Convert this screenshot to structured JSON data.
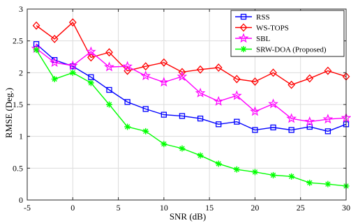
{
  "chart_data": {
    "type": "line",
    "title": "",
    "xlabel": "SNR (dB)",
    "ylabel": "RMSE (Deg.)",
    "xlim": [
      -5,
      30
    ],
    "ylim": [
      0,
      3
    ],
    "xticks": [
      -5,
      0,
      5,
      10,
      15,
      20,
      25,
      30
    ],
    "yticks": [
      0,
      0.5,
      1,
      1.5,
      2,
      2.5,
      3
    ],
    "xtick_labels": [
      "-5",
      "0",
      "5",
      "10",
      "15",
      "20",
      "25",
      "30"
    ],
    "ytick_labels": [
      "0",
      "0.5",
      "1",
      "1.5",
      "2",
      "2.5",
      "3"
    ],
    "grid": true,
    "legend_position": "top-right",
    "x": [
      -4,
      -2,
      0,
      2,
      4,
      6,
      8,
      10,
      12,
      14,
      16,
      18,
      20,
      22,
      24,
      26,
      28,
      30
    ],
    "series": [
      {
        "name": "RSS",
        "color": "#0000ff",
        "marker": "square",
        "values": [
          2.45,
          2.2,
          2.1,
          1.93,
          1.73,
          1.54,
          1.43,
          1.34,
          1.32,
          1.28,
          1.19,
          1.23,
          1.1,
          1.14,
          1.1,
          1.15,
          1.08,
          1.19
        ]
      },
      {
        "name": "WS-TOPS",
        "color": "#ff0000",
        "marker": "diamond",
        "values": [
          2.74,
          2.53,
          2.79,
          2.24,
          2.32,
          2.03,
          2.1,
          2.16,
          2.01,
          2.05,
          2.08,
          1.9,
          1.86,
          2.0,
          1.81,
          1.91,
          2.03,
          1.94
        ]
      },
      {
        "name": "SBL",
        "color": "#ff00ff",
        "marker": "star",
        "values": [
          2.38,
          2.16,
          2.11,
          2.33,
          2.09,
          2.1,
          1.95,
          1.85,
          1.94,
          1.68,
          1.55,
          1.64,
          1.39,
          1.51,
          1.28,
          1.23,
          1.27,
          1.29
        ]
      },
      {
        "name": "SRW-DOA (Proposed)",
        "color": "#00ff00",
        "marker": "asterisk",
        "values": [
          2.36,
          1.9,
          2.0,
          1.84,
          1.5,
          1.15,
          1.08,
          0.88,
          0.81,
          0.7,
          0.57,
          0.48,
          0.44,
          0.39,
          0.37,
          0.27,
          0.25,
          0.22
        ]
      }
    ]
  }
}
